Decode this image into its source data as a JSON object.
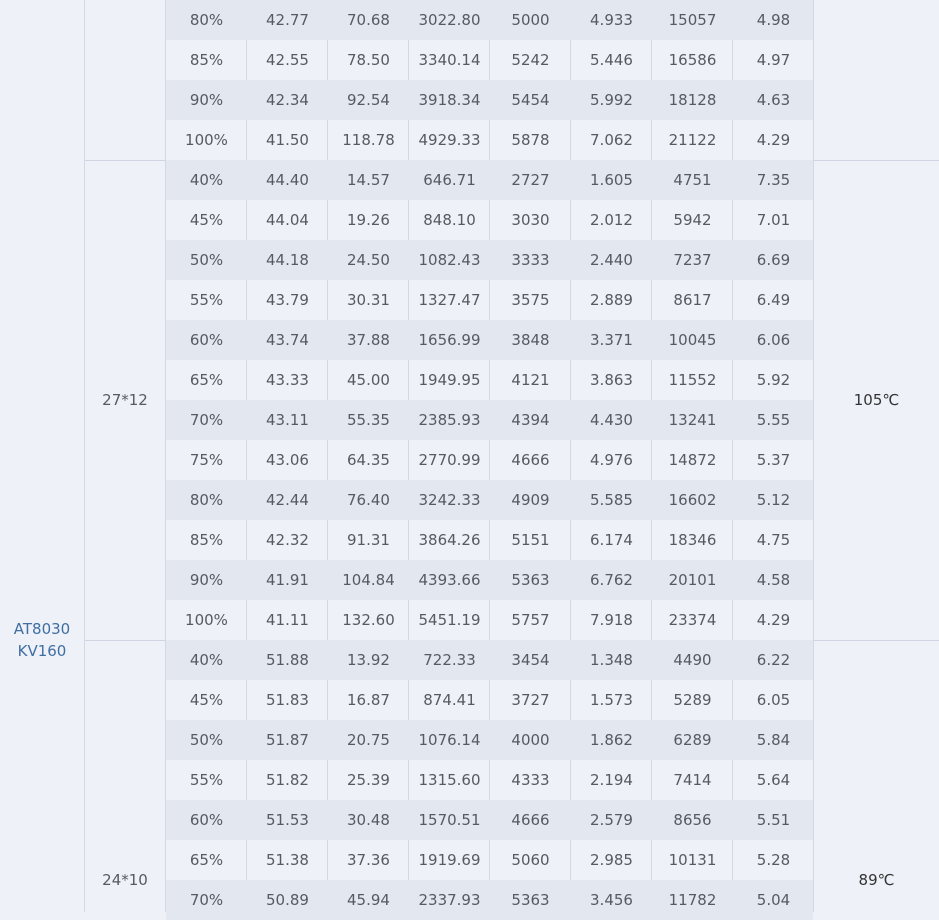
{
  "table": {
    "model": {
      "line1": "AT8030",
      "line2": "KV160"
    },
    "groups": [
      {
        "prop": "",
        "temp": "",
        "rows": [
          [
            "80%",
            "42.77",
            "70.68",
            "3022.80",
            "5000",
            "4.933",
            "15057",
            "4.98"
          ],
          [
            "85%",
            "42.55",
            "78.50",
            "3340.14",
            "5242",
            "5.446",
            "16586",
            "4.97"
          ],
          [
            "90%",
            "42.34",
            "92.54",
            "3918.34",
            "5454",
            "5.992",
            "18128",
            "4.63"
          ],
          [
            "100%",
            "41.50",
            "118.78",
            "4929.33",
            "5878",
            "7.062",
            "21122",
            "4.29"
          ]
        ]
      },
      {
        "prop": "27*12",
        "temp": "105℃",
        "rows": [
          [
            "40%",
            "44.40",
            "14.57",
            "646.71",
            "2727",
            "1.605",
            "4751",
            "7.35"
          ],
          [
            "45%",
            "44.04",
            "19.26",
            "848.10",
            "3030",
            "2.012",
            "5942",
            "7.01"
          ],
          [
            "50%",
            "44.18",
            "24.50",
            "1082.43",
            "3333",
            "2.440",
            "7237",
            "6.69"
          ],
          [
            "55%",
            "43.79",
            "30.31",
            "1327.47",
            "3575",
            "2.889",
            "8617",
            "6.49"
          ],
          [
            "60%",
            "43.74",
            "37.88",
            "1656.99",
            "3848",
            "3.371",
            "10045",
            "6.06"
          ],
          [
            "65%",
            "43.33",
            "45.00",
            "1949.95",
            "4121",
            "3.863",
            "11552",
            "5.92"
          ],
          [
            "70%",
            "43.11",
            "55.35",
            "2385.93",
            "4394",
            "4.430",
            "13241",
            "5.55"
          ],
          [
            "75%",
            "43.06",
            "64.35",
            "2770.99",
            "4666",
            "4.976",
            "14872",
            "5.37"
          ],
          [
            "80%",
            "42.44",
            "76.40",
            "3242.33",
            "4909",
            "5.585",
            "16602",
            "5.12"
          ],
          [
            "85%",
            "42.32",
            "91.31",
            "3864.26",
            "5151",
            "6.174",
            "18346",
            "4.75"
          ],
          [
            "90%",
            "41.91",
            "104.84",
            "4393.66",
            "5363",
            "6.762",
            "20101",
            "4.58"
          ],
          [
            "100%",
            "41.11",
            "132.60",
            "5451.19",
            "5757",
            "7.918",
            "23374",
            "4.29"
          ]
        ]
      },
      {
        "prop": "24*10",
        "temp": "89℃",
        "rows": [
          [
            "40%",
            "51.88",
            "13.92",
            "722.33",
            "3454",
            "1.348",
            "4490",
            "6.22"
          ],
          [
            "45%",
            "51.83",
            "16.87",
            "874.41",
            "3727",
            "1.573",
            "5289",
            "6.05"
          ],
          [
            "50%",
            "51.87",
            "20.75",
            "1076.14",
            "4000",
            "1.862",
            "6289",
            "5.84"
          ],
          [
            "55%",
            "51.82",
            "25.39",
            "1315.60",
            "4333",
            "2.194",
            "7414",
            "5.64"
          ],
          [
            "60%",
            "51.53",
            "30.48",
            "1570.51",
            "4666",
            "2.579",
            "8656",
            "5.51"
          ],
          [
            "65%",
            "51.38",
            "37.36",
            "1919.69",
            "5060",
            "2.985",
            "10131",
            "5.28"
          ],
          [
            "70%",
            "50.89",
            "45.94",
            "2337.93",
            "5363",
            "3.456",
            "11782",
            "5.04"
          ]
        ]
      }
    ]
  }
}
